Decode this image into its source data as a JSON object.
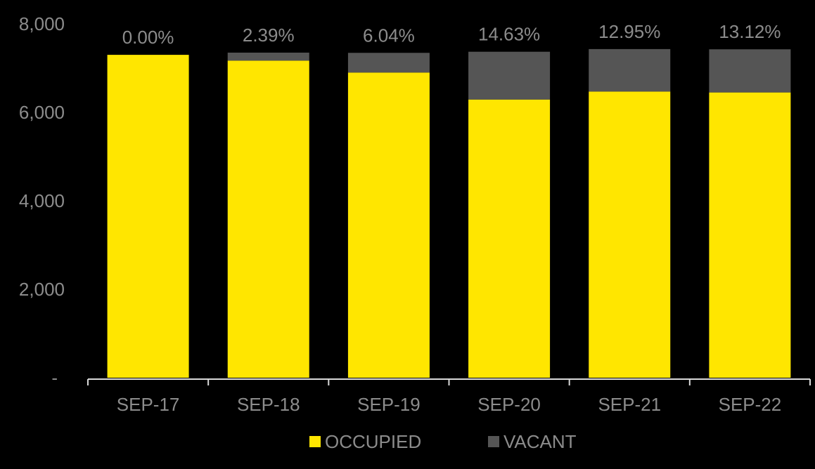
{
  "chart_data": {
    "type": "bar",
    "stacked": true,
    "categories": [
      "SEP-17",
      "SEP-18",
      "SEP-19",
      "SEP-20",
      "SEP-21",
      "SEP-22"
    ],
    "series": [
      {
        "name": "OCCUPIED",
        "color": "#ffe600",
        "values": [
          7300,
          7170,
          6900,
          6290,
          6470,
          6450
        ]
      },
      {
        "name": "VACANT",
        "color": "#555555",
        "values": [
          0,
          180,
          445,
          1080,
          960,
          975
        ]
      }
    ],
    "data_labels": [
      "0.00%",
      "2.39%",
      "6.04%",
      "14.63%",
      "12.95%",
      "13.12%"
    ],
    "y_ticks": [
      {
        "value": 0,
        "label": "-"
      },
      {
        "value": 2000,
        "label": "2,000"
      },
      {
        "value": 4000,
        "label": "4,000"
      },
      {
        "value": 6000,
        "label": "6,000"
      },
      {
        "value": 8000,
        "label": "8,000"
      }
    ],
    "ylim": [
      0,
      8000
    ],
    "grid": false,
    "legend_position": "bottom",
    "background": "#000000",
    "text_color": "#8c8c8c"
  }
}
